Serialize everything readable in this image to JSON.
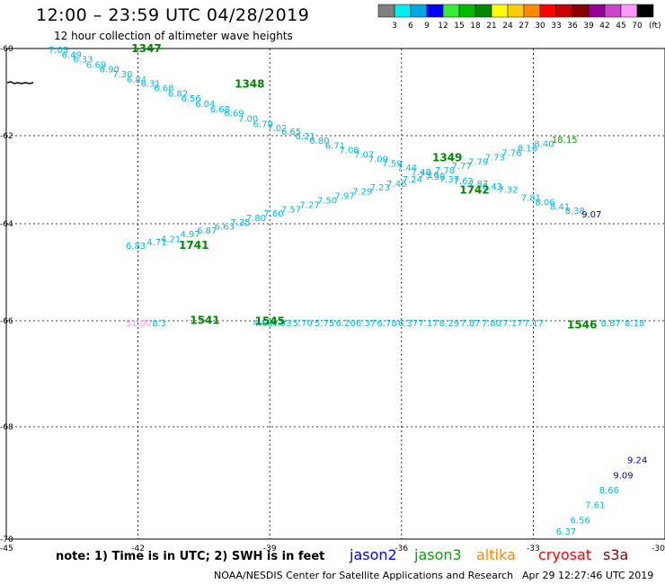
{
  "header": {
    "title": "12:00 – 23:59 UTC 04/28/2019",
    "subtitle": "12 hour collection of altimeter wave heights"
  },
  "legend": {
    "unit": "(ft)",
    "bins": [
      {
        "label": "3",
        "color": "#808080"
      },
      {
        "label": "6",
        "color": "#00eeee"
      },
      {
        "label": "9",
        "color": "#00a8e8"
      },
      {
        "label": "12",
        "color": "#0000ff"
      },
      {
        "label": "15",
        "color": "#33ee33"
      },
      {
        "label": "18",
        "color": "#00bb00"
      },
      {
        "label": "21",
        "color": "#008800"
      },
      {
        "label": "24",
        "color": "#ffff00"
      },
      {
        "label": "27",
        "color": "#ffcc00"
      },
      {
        "label": "30",
        "color": "#ff8800"
      },
      {
        "label": "33",
        "color": "#ff0000"
      },
      {
        "label": "36",
        "color": "#cc0000"
      },
      {
        "label": "39",
        "color": "#880000"
      },
      {
        "label": "42",
        "color": "#990099"
      },
      {
        "label": "45",
        "color": "#cc44cc"
      },
      {
        "label": "70",
        "color": "#ff99ff"
      },
      {
        "label": "",
        "color": "#000000"
      }
    ]
  },
  "map": {
    "lat_labels": [
      "-60",
      "-62",
      "-64",
      "-66",
      "-68",
      "-70"
    ],
    "lon_labels": [
      "-45",
      "-42",
      "-39",
      "-36",
      "-33",
      "-30"
    ]
  },
  "tracks": [
    {
      "pass": "1347",
      "points": [
        {
          "lon": -44.04,
          "lat": -60.1,
          "v": "7.05",
          "c": "#00bbee"
        },
        {
          "lon": -43.74,
          "lat": -60.22,
          "v": "6.49",
          "c": "#00bbee"
        },
        {
          "lon": -43.48,
          "lat": -60.32,
          "v": "6.33",
          "c": "#00bbee"
        },
        {
          "lon": -43.18,
          "lat": -60.44,
          "v": "6.69",
          "c": "#00bbee"
        },
        {
          "lon": -42.88,
          "lat": -60.55,
          "v": "6.90",
          "c": "#00bbee"
        },
        {
          "lon": -42.58,
          "lat": -60.66,
          "v": "7.30",
          "c": "#00bbee"
        },
        {
          "lon": -42.26,
          "lat": -60.78,
          "v": "6.84",
          "c": "#00bbee"
        },
        {
          "lon": -41.94,
          "lat": -60.88,
          "v": "6.31",
          "c": "#00bbee"
        }
      ]
    },
    {
      "pass": "1348",
      "points": [
        {
          "lon": -41.64,
          "lat": -60.98,
          "v": "6.68",
          "c": "#00bbee"
        },
        {
          "lon": -41.32,
          "lat": -61.1,
          "v": "6.82",
          "c": "#00bbee"
        },
        {
          "lon": -41.02,
          "lat": -61.22,
          "v": "6.56",
          "c": "#00bbee"
        },
        {
          "lon": -40.7,
          "lat": -61.34,
          "v": "6.04",
          "c": "#00bbee"
        },
        {
          "lon": -40.36,
          "lat": -61.46,
          "v": "6.68",
          "c": "#00bbee"
        },
        {
          "lon": -40.04,
          "lat": -61.56,
          "v": "6.69",
          "c": "#00bbee"
        },
        {
          "lon": -39.72,
          "lat": -61.68,
          "v": "7.00",
          "c": "#00bbee"
        },
        {
          "lon": -39.38,
          "lat": -61.8,
          "v": "6.79",
          "c": "#00bbee"
        },
        {
          "lon": -39.06,
          "lat": -61.9,
          "v": "7.02",
          "c": "#00bbee"
        },
        {
          "lon": -38.74,
          "lat": -61.98,
          "v": "6.65",
          "c": "#00bbee"
        },
        {
          "lon": -38.42,
          "lat": -62.08,
          "v": "6.21",
          "c": "#00bbee"
        },
        {
          "lon": -38.1,
          "lat": -62.18,
          "v": "6.80",
          "c": "#00bbee"
        },
        {
          "lon": -37.74,
          "lat": -62.3,
          "v": "6.71",
          "c": "#00bbee"
        },
        {
          "lon": -37.42,
          "lat": -62.4,
          "v": "7.08",
          "c": "#00bbee"
        },
        {
          "lon": -37.08,
          "lat": -62.5,
          "v": "7.07",
          "c": "#00bbee"
        }
      ]
    },
    {
      "pass": "1349",
      "points": [
        {
          "lon": -36.76,
          "lat": -62.6,
          "v": "7.09",
          "c": "#00bbee"
        },
        {
          "lon": -36.44,
          "lat": -62.7,
          "v": "7.59",
          "c": "#00bbee"
        },
        {
          "lon": -36.1,
          "lat": -62.8,
          "v": "7.44",
          "c": "#00bbee"
        },
        {
          "lon": -35.78,
          "lat": -62.9,
          "v": "7.48",
          "c": "#00bbee"
        },
        {
          "lon": -35.46,
          "lat": -63.0,
          "v": "7.38",
          "c": "#00bbee"
        },
        {
          "lon": -35.14,
          "lat": -63.06,
          "v": "7.37",
          "c": "#00bbee"
        },
        {
          "lon": -34.82,
          "lat": -63.1,
          "v": "7.62",
          "c": "#00bbee"
        },
        {
          "lon": -34.48,
          "lat": -63.16,
          "v": "7.87",
          "c": "#00bbee"
        },
        {
          "lon": -34.16,
          "lat": -63.22,
          "v": "8.43",
          "c": "#00bbee"
        },
        {
          "lon": -33.8,
          "lat": -63.3,
          "v": "7.32",
          "c": "#00bbee"
        },
        {
          "lon": -33.28,
          "lat": -63.48,
          "v": "7.81",
          "c": "#00bbee"
        },
        {
          "lon": -32.96,
          "lat": -63.58,
          "v": "8.06",
          "c": "#00bbee"
        },
        {
          "lon": -32.62,
          "lat": -63.68,
          "v": "8.41",
          "c": "#00bbee"
        },
        {
          "lon": -32.28,
          "lat": -63.78,
          "v": "8.38",
          "c": "#00bbee"
        },
        {
          "lon": -31.9,
          "lat": -63.86,
          "v": "9.07",
          "c": "#0000cc"
        }
      ]
    },
    {
      "pass": "1741",
      "points": [
        {
          "lon": -42.28,
          "lat": -64.52,
          "v": "6.83",
          "c": "#00bbee"
        },
        {
          "lon": -41.8,
          "lat": -64.44,
          "v": "4.71",
          "c": "#00bbee"
        },
        {
          "lon": -41.48,
          "lat": -64.38,
          "v": "4.21",
          "c": "#00bbee"
        },
        {
          "lon": -41.04,
          "lat": -64.28,
          "v": "4.97",
          "c": "#00bbee"
        },
        {
          "lon": -40.66,
          "lat": -64.2,
          "v": "6.87",
          "c": "#00bbee"
        },
        {
          "lon": -40.26,
          "lat": -64.12,
          "v": "6.63",
          "c": "#00bbee"
        },
        {
          "lon": -39.9,
          "lat": -64.04,
          "v": "7.35",
          "c": "#00bbee"
        },
        {
          "lon": -39.54,
          "lat": -63.94,
          "v": "7.80",
          "c": "#00bbee"
        },
        {
          "lon": -39.14,
          "lat": -63.84,
          "v": "7.60",
          "c": "#00bbee"
        },
        {
          "lon": -38.74,
          "lat": -63.74,
          "v": "7.57",
          "c": "#00bbee"
        },
        {
          "lon": -38.32,
          "lat": -63.64,
          "v": "7.27",
          "c": "#00bbee"
        },
        {
          "lon": -37.92,
          "lat": -63.54,
          "v": "7.50",
          "c": "#00bbee"
        },
        {
          "lon": -37.52,
          "lat": -63.44,
          "v": "7.97",
          "c": "#00bbee"
        },
        {
          "lon": -37.12,
          "lat": -63.34,
          "v": "7.29",
          "c": "#00bbee"
        },
        {
          "lon": -36.72,
          "lat": -63.24,
          "v": "7.23",
          "c": "#00bbee"
        }
      ]
    },
    {
      "pass": "1742",
      "points": [
        {
          "lon": -36.34,
          "lat": -63.16,
          "v": "7.46",
          "c": "#00bbee"
        },
        {
          "lon": -35.98,
          "lat": -63.06,
          "v": "7.24",
          "c": "#00bbee"
        },
        {
          "lon": -35.6,
          "lat": -62.96,
          "v": "7.16",
          "c": "#00bbee"
        },
        {
          "lon": -35.24,
          "lat": -62.86,
          "v": "7.78",
          "c": "#00bbee"
        },
        {
          "lon": -34.86,
          "lat": -62.76,
          "v": "7.77",
          "c": "#00bbee"
        },
        {
          "lon": -34.48,
          "lat": -62.66,
          "v": "7.79",
          "c": "#00bbee"
        },
        {
          "lon": -34.1,
          "lat": -62.56,
          "v": "7.73",
          "c": "#00bbee"
        },
        {
          "lon": -33.72,
          "lat": -62.46,
          "v": "7.76",
          "c": "#00bbee"
        },
        {
          "lon": -33.36,
          "lat": -62.36,
          "v": "8.16",
          "c": "#00bbee"
        },
        {
          "lon": -32.98,
          "lat": -62.26,
          "v": "8.40",
          "c": "#00bbee"
        },
        {
          "lon": -32.58,
          "lat": -62.16,
          "v": "18.15",
          "c": "#00aa00"
        }
      ]
    },
    {
      "pass": "1541",
      "points": [
        {
          "lon": -42.28,
          "lat": -66.1,
          "v": "51.00",
          "c": "#ff99ff"
        },
        {
          "lon": -41.68,
          "lat": -66.1,
          "v": "8.3",
          "c": "#00bbee"
        }
      ]
    },
    {
      "pass": "1545",
      "points": [
        {
          "lon": -39.38,
          "lat": -66.1,
          "v": "4.68",
          "c": "#00bbee"
        },
        {
          "lon": -38.96,
          "lat": -66.1,
          "v": "4.93",
          "c": "#00bbee"
        },
        {
          "lon": -38.48,
          "lat": -66.1,
          "v": "5.70",
          "c": "#00bbee"
        },
        {
          "lon": -37.98,
          "lat": -66.1,
          "v": "5.75",
          "c": "#00bbee"
        },
        {
          "lon": -37.5,
          "lat": -66.1,
          "v": "6.20",
          "c": "#00bbee"
        },
        {
          "lon": -37.04,
          "lat": -66.1,
          "v": "6.37",
          "c": "#00bbee"
        },
        {
          "lon": -36.56,
          "lat": -66.1,
          "v": "6.78",
          "c": "#00bbee"
        },
        {
          "lon": -36.08,
          "lat": -66.1,
          "v": "6.37",
          "c": "#00bbee"
        },
        {
          "lon": -35.62,
          "lat": -66.1,
          "v": "7.17",
          "c": "#00bbee"
        },
        {
          "lon": -35.14,
          "lat": -66.1,
          "v": "8.29",
          "c": "#00bbee"
        },
        {
          "lon": -34.66,
          "lat": -66.1,
          "v": "7.87",
          "c": "#00bbee"
        },
        {
          "lon": -34.18,
          "lat": -66.1,
          "v": "7.80",
          "c": "#00bbee"
        },
        {
          "lon": -33.7,
          "lat": -66.1,
          "v": "7.17",
          "c": "#00bbee"
        },
        {
          "lon": -33.22,
          "lat": -66.1,
          "v": "7.17",
          "c": "#00bbee"
        }
      ]
    },
    {
      "pass": "1546",
      "points": [
        {
          "lon": -31.46,
          "lat": -66.1,
          "v": "8.87",
          "c": "#00bbee"
        },
        {
          "lon": -30.92,
          "lat": -66.1,
          "v": "8.18",
          "c": "#00bbee"
        }
      ]
    },
    {
      "pass": "",
      "points": [
        {
          "lon": -30.86,
          "lat": -68.65,
          "v": "9.24",
          "c": "#0000cc"
        },
        {
          "lon": -31.18,
          "lat": -68.92,
          "v": "9.09",
          "c": "#0000cc"
        },
        {
          "lon": -31.5,
          "lat": -69.18,
          "v": "8.66",
          "c": "#00bbee"
        },
        {
          "lon": -31.82,
          "lat": -69.45,
          "v": "7.61",
          "c": "#00bbee"
        },
        {
          "lon": -32.16,
          "lat": -69.72,
          "v": "6.56",
          "c": "#00bbee"
        },
        {
          "lon": -32.48,
          "lat": -69.92,
          "v": "6.37",
          "c": "#00bbee"
        }
      ]
    }
  ],
  "pass_labels": [
    {
      "label": "1347",
      "lon": -42.15,
      "lat": -60.08,
      "c": "#008800"
    },
    {
      "label": "1348",
      "lon": -39.8,
      "lat": -60.9,
      "c": "#008800"
    },
    {
      "label": "1349",
      "lon": -35.3,
      "lat": -62.58,
      "c": "#008800"
    },
    {
      "label": "1741",
      "lon": -41.07,
      "lat": -64.52,
      "c": "#008800"
    },
    {
      "label": "1742",
      "lon": -34.68,
      "lat": -63.32,
      "c": "#008800"
    },
    {
      "label": "1541",
      "lon": -40.82,
      "lat": -66.06,
      "c": "#008800"
    },
    {
      "label": "1545",
      "lon": -39.34,
      "lat": -66.08,
      "c": "#008800"
    },
    {
      "label": "1546",
      "lon": -32.23,
      "lat": -66.14,
      "c": "#008800"
    }
  ],
  "footer": {
    "note": "note: 1) Time is in UTC; 2) SWH is in feet",
    "satellites": [
      {
        "name": "jason2",
        "color": "#0000ff"
      },
      {
        "name": "jason3",
        "color": "#00aa00"
      },
      {
        "name": "altika",
        "color": "#ff8800"
      },
      {
        "name": "cryosat",
        "color": "#ff0000"
      },
      {
        "name": "s3a",
        "color": "#8b0000"
      }
    ],
    "credit": "NOAA/NESDIS Center for Satellite Applications and Research",
    "timestamp": "Apr 29 12:27:46 UTC 2019"
  }
}
